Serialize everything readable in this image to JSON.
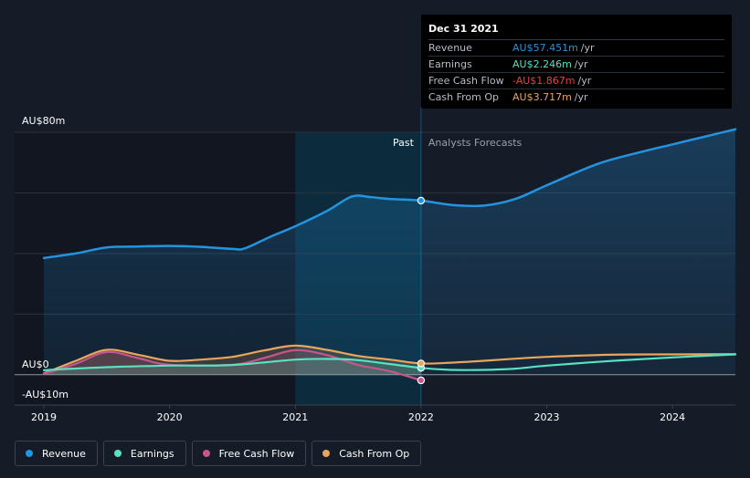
{
  "chart_data": {
    "type": "line",
    "title": "",
    "currency_prefix": "AU$",
    "y_axis": {
      "top_label": "AU$80m",
      "zero_label": "AU$0",
      "bottom_label": "-AU$10m",
      "ylim": [
        -10,
        80
      ]
    },
    "x_axis": {
      "ticks": [
        "2019",
        "2020",
        "2021",
        "2022",
        "2023",
        "2024"
      ],
      "tick_values": [
        2019,
        2020,
        2021,
        2022,
        2023,
        2024
      ],
      "xlim": [
        2019.0,
        2024.5
      ]
    },
    "regions": {
      "past_label": "Past",
      "forecast_label": "Analysts Forecasts",
      "divider_x": 2022.0,
      "highlight_start_x": 2021.0
    },
    "series": [
      {
        "name": "Revenue",
        "color": "#2394df",
        "area": true,
        "points": [
          [
            2019.0,
            38.5
          ],
          [
            2019.25,
            40
          ],
          [
            2019.5,
            42
          ],
          [
            2019.75,
            42.3
          ],
          [
            2020.0,
            42.5
          ],
          [
            2020.25,
            42.2
          ],
          [
            2020.5,
            41.5
          ],
          [
            2020.6,
            41.7
          ],
          [
            2020.8,
            45.5
          ],
          [
            2021.0,
            49
          ],
          [
            2021.25,
            54
          ],
          [
            2021.45,
            58.8
          ],
          [
            2021.6,
            58.6
          ],
          [
            2021.75,
            58.0
          ],
          [
            2022.0,
            57.451
          ],
          [
            2022.25,
            56
          ],
          [
            2022.5,
            55.8
          ],
          [
            2022.75,
            58
          ],
          [
            2023.0,
            62.5
          ],
          [
            2023.4,
            69.5
          ],
          [
            2023.75,
            73.5
          ],
          [
            2024.0,
            76
          ],
          [
            2024.25,
            78.5
          ],
          [
            2024.5,
            81
          ]
        ]
      },
      {
        "name": "Earnings",
        "color": "#58e1c2",
        "area": false,
        "points": [
          [
            2019.0,
            1.5
          ],
          [
            2019.5,
            2.5
          ],
          [
            2020.0,
            3.0
          ],
          [
            2020.5,
            3.2
          ],
          [
            2021.0,
            5.0
          ],
          [
            2021.25,
            5.2
          ],
          [
            2021.5,
            4.8
          ],
          [
            2022.0,
            2.246
          ],
          [
            2022.25,
            1.6
          ],
          [
            2022.5,
            1.6
          ],
          [
            2022.75,
            2.0
          ],
          [
            2023.0,
            3.0
          ],
          [
            2023.5,
            4.5
          ],
          [
            2024.0,
            5.7
          ],
          [
            2024.5,
            6.7
          ]
        ]
      },
      {
        "name": "Free Cash Flow",
        "color": "#c5568d",
        "area": false,
        "points": [
          [
            2019.0,
            0.3
          ],
          [
            2019.25,
            3.5
          ],
          [
            2019.5,
            7.5
          ],
          [
            2019.75,
            5.5
          ],
          [
            2020.0,
            3.3
          ],
          [
            2020.5,
            3.3
          ],
          [
            2020.75,
            5.5
          ],
          [
            2021.0,
            8.1
          ],
          [
            2021.25,
            6.5
          ],
          [
            2021.5,
            3.2
          ],
          [
            2021.75,
            1.2
          ],
          [
            2022.0,
            -1.867
          ]
        ]
      },
      {
        "name": "Cash From Op",
        "color": "#e8a55d",
        "area": false,
        "points": [
          [
            2019.0,
            0.4
          ],
          [
            2019.25,
            4.5
          ],
          [
            2019.5,
            8.2
          ],
          [
            2019.75,
            6.6
          ],
          [
            2020.0,
            4.6
          ],
          [
            2020.25,
            5.0
          ],
          [
            2020.5,
            5.9
          ],
          [
            2020.75,
            8.0
          ],
          [
            2021.0,
            9.6
          ],
          [
            2021.25,
            8.2
          ],
          [
            2021.5,
            6.2
          ],
          [
            2021.75,
            5.0
          ],
          [
            2022.0,
            3.717
          ],
          [
            2022.25,
            4.0
          ],
          [
            2022.5,
            4.6
          ],
          [
            2022.75,
            5.3
          ],
          [
            2023.0,
            5.9
          ],
          [
            2023.5,
            6.6
          ],
          [
            2024.0,
            6.7
          ],
          [
            2024.5,
            6.8
          ]
        ]
      }
    ],
    "tooltip": {
      "date": "Dec 31 2021",
      "x": 2022.0,
      "rows": [
        {
          "name": "Revenue",
          "value": "AU$57.451m",
          "unit": "/yr",
          "color": "#2394df"
        },
        {
          "name": "Earnings",
          "value": "AU$2.246m",
          "unit": "/yr",
          "color": "#58e1c2"
        },
        {
          "name": "Free Cash Flow",
          "value": "-AU$1.867m",
          "unit": "/yr",
          "color": "#e64141"
        },
        {
          "name": "Cash From Op",
          "value": "AU$3.717m",
          "unit": "/yr",
          "color": "#e8a55d"
        }
      ]
    }
  },
  "legend": [
    {
      "label": "Revenue",
      "color": "#2394df"
    },
    {
      "label": "Earnings",
      "color": "#58e1c2"
    },
    {
      "label": "Free Cash Flow",
      "color": "#c5568d"
    },
    {
      "label": "Cash From Op",
      "color": "#e8a55d"
    }
  ],
  "colors": {
    "background": "#151b27",
    "past_shade": "#111620",
    "highlight": "#0c2b3c",
    "grid": "#2a3140",
    "past_label": "#ffffff",
    "forecast_label": "#9aa1ac"
  }
}
